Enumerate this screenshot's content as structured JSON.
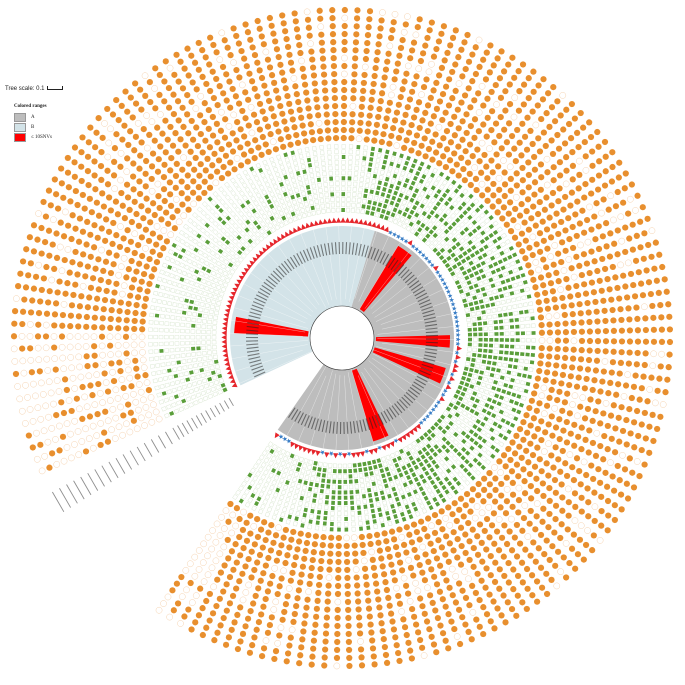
{
  "tree_scale": {
    "label": "Tree scale: 0.1"
  },
  "legend": {
    "title": "Colored ranges",
    "items": [
      {
        "label": "A",
        "color": "#bdbdbd"
      },
      {
        "label": "B",
        "color": "#d3e3e8"
      },
      {
        "label": "≤ 10SNVs",
        "color": "#ff0000"
      }
    ]
  },
  "colors": {
    "clade_a": "#bdbdbd",
    "clade_b": "#d3e3e8",
    "cluster": "#ff0000",
    "marker_red": "#e6262c",
    "marker_blue": "#3a7ec6",
    "green_square": "#5a9e3a",
    "orange_dot": "#e88f2e",
    "branch": "#333333"
  },
  "icons": {
    "ring_marker_a": "star-icon",
    "ring_marker_b": "triangle-icon",
    "gene_present": "square-icon",
    "gene_absent": "empty-square-icon",
    "feature_present": "filled-circle-icon",
    "feature_absent": "empty-circle-icon"
  },
  "rings": {
    "green_ring_count": 13,
    "orange_ring_count": 17
  }
}
